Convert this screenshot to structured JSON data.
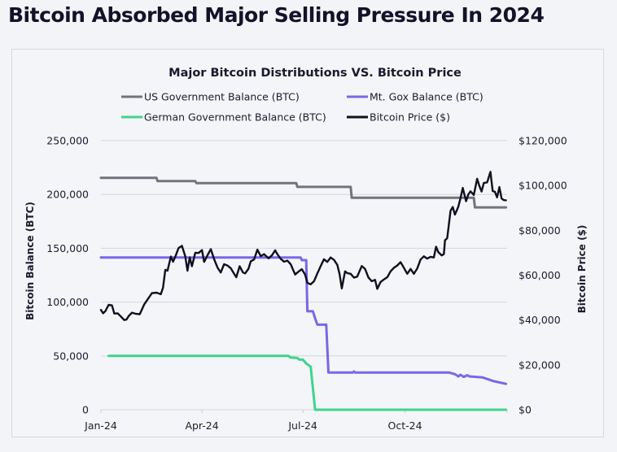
{
  "page": {
    "title": "Bitcoin Absorbed Major Selling Pressure In 2024"
  },
  "chart_data": {
    "type": "line",
    "title": "Major Bitcoin Distributions VS. Bitcoin Price",
    "legend_position": "top",
    "grid": true,
    "x_ticks": [
      "Jan-24",
      "Apr-24",
      "Jul-24",
      "Oct-24"
    ],
    "x_range": [
      "2024-01-01",
      "2025-01-01"
    ],
    "left_axis": {
      "label": "Bitcoin Balance (BTC)",
      "range": [
        0,
        250000
      ],
      "ticks": [
        0,
        50000,
        100000,
        150000,
        200000,
        250000
      ],
      "tick_labels": [
        "0",
        "50,000",
        "100,000",
        "150,000",
        "200,000",
        "250,000"
      ]
    },
    "right_axis": {
      "label": "Bitcoin Price ($)",
      "range": [
        0,
        120000
      ],
      "ticks": [
        0,
        20000,
        40000,
        60000,
        80000,
        100000,
        120000
      ],
      "tick_labels": [
        "$0",
        "$20,000",
        "$40,000",
        "$60,000",
        "$80,000",
        "$100,000",
        "$120,000"
      ]
    },
    "series": [
      {
        "name": "US Government Balance (BTC)",
        "axis": "left",
        "color": "#73737d",
        "step": true,
        "points": [
          [
            "2024-01-01",
            215500
          ],
          [
            "2024-02-20",
            215500
          ],
          [
            "2024-02-21",
            212500
          ],
          [
            "2024-03-26",
            212500
          ],
          [
            "2024-03-27",
            210500
          ],
          [
            "2024-06-25",
            210500
          ],
          [
            "2024-06-26",
            207000
          ],
          [
            "2024-08-13",
            207000
          ],
          [
            "2024-08-14",
            197000
          ],
          [
            "2024-12-02",
            197000
          ],
          [
            "2024-12-03",
            188000
          ],
          [
            "2024-12-31",
            188000
          ]
        ]
      },
      {
        "name": "Mt. Gox Balance (BTC)",
        "axis": "left",
        "color": "#7b66e8",
        "step": true,
        "points": [
          [
            "2024-01-01",
            141500
          ],
          [
            "2024-06-29",
            141500
          ],
          [
            "2024-06-30",
            139000
          ],
          [
            "2024-07-04",
            139000
          ],
          [
            "2024-07-05",
            91500
          ],
          [
            "2024-07-10",
            91500
          ],
          [
            "2024-07-12",
            85000
          ],
          [
            "2024-07-14",
            79000
          ],
          [
            "2024-07-22",
            79000
          ],
          [
            "2024-07-24",
            34500
          ],
          [
            "2024-08-15",
            34500
          ],
          [
            "2024-08-16",
            35500
          ],
          [
            "2024-08-17",
            34500
          ],
          [
            "2024-11-10",
            34500
          ],
          [
            "2024-11-15",
            33000
          ],
          [
            "2024-11-18",
            31000
          ],
          [
            "2024-11-20",
            32500
          ],
          [
            "2024-11-23",
            30500
          ],
          [
            "2024-11-26",
            32000
          ],
          [
            "2024-11-28",
            31000
          ],
          [
            "2024-12-10",
            30000
          ],
          [
            "2024-12-20",
            26500
          ],
          [
            "2024-12-31",
            24000
          ]
        ]
      },
      {
        "name": "German Government Balance (BTC)",
        "axis": "left",
        "color": "#3fd38f",
        "step": false,
        "points": [
          [
            "2024-01-08",
            50000
          ],
          [
            "2024-06-18",
            50000
          ],
          [
            "2024-06-20",
            48500
          ],
          [
            "2024-06-26",
            48000
          ],
          [
            "2024-06-28",
            46500
          ],
          [
            "2024-07-01",
            46500
          ],
          [
            "2024-07-04",
            43000
          ],
          [
            "2024-07-08",
            40000
          ],
          [
            "2024-07-10",
            20000
          ],
          [
            "2024-07-12",
            0
          ],
          [
            "2024-12-31",
            0
          ]
        ]
      },
      {
        "name": "Bitcoin Price ($)",
        "axis": "right",
        "color": "#0f0f20",
        "step": false,
        "points": [
          [
            "2024-01-01",
            44500
          ],
          [
            "2024-01-03",
            43000
          ],
          [
            "2024-01-05",
            44000
          ],
          [
            "2024-01-08",
            46800
          ],
          [
            "2024-01-11",
            46500
          ],
          [
            "2024-01-13",
            42900
          ],
          [
            "2024-01-16",
            43000
          ],
          [
            "2024-01-19",
            41600
          ],
          [
            "2024-01-22",
            40000
          ],
          [
            "2024-01-24",
            40200
          ],
          [
            "2024-01-26",
            41800
          ],
          [
            "2024-01-29",
            43300
          ],
          [
            "2024-02-01",
            42800
          ],
          [
            "2024-02-05",
            42600
          ],
          [
            "2024-02-09",
            47000
          ],
          [
            "2024-02-13",
            49900
          ],
          [
            "2024-02-16",
            52000
          ],
          [
            "2024-02-20",
            52200
          ],
          [
            "2024-02-24",
            51500
          ],
          [
            "2024-02-26",
            54500
          ],
          [
            "2024-02-28",
            62400
          ],
          [
            "2024-03-01",
            62000
          ],
          [
            "2024-03-04",
            68300
          ],
          [
            "2024-03-06",
            66000
          ],
          [
            "2024-03-08",
            68200
          ],
          [
            "2024-03-11",
            72100
          ],
          [
            "2024-03-14",
            73100
          ],
          [
            "2024-03-17",
            68400
          ],
          [
            "2024-03-19",
            62000
          ],
          [
            "2024-03-21",
            67900
          ],
          [
            "2024-03-23",
            64000
          ],
          [
            "2024-03-26",
            70000
          ],
          [
            "2024-03-29",
            69900
          ],
          [
            "2024-04-01",
            71200
          ],
          [
            "2024-04-03",
            65900
          ],
          [
            "2024-04-06",
            68900
          ],
          [
            "2024-04-09",
            71600
          ],
          [
            "2024-04-12",
            67100
          ],
          [
            "2024-04-15",
            63400
          ],
          [
            "2024-04-18",
            61200
          ],
          [
            "2024-04-21",
            64900
          ],
          [
            "2024-04-24",
            64300
          ],
          [
            "2024-04-27",
            63100
          ],
          [
            "2024-04-30",
            60600
          ],
          [
            "2024-05-02",
            59100
          ],
          [
            "2024-05-05",
            64000
          ],
          [
            "2024-05-08",
            61200
          ],
          [
            "2024-05-10",
            60800
          ],
          [
            "2024-05-13",
            62900
          ],
          [
            "2024-05-15",
            66200
          ],
          [
            "2024-05-18",
            67000
          ],
          [
            "2024-05-21",
            71400
          ],
          [
            "2024-05-24",
            68500
          ],
          [
            "2024-05-27",
            69400
          ],
          [
            "2024-05-31",
            67500
          ],
          [
            "2024-06-03",
            68800
          ],
          [
            "2024-06-06",
            71100
          ],
          [
            "2024-06-08",
            69300
          ],
          [
            "2024-06-11",
            67300
          ],
          [
            "2024-06-14",
            66000
          ],
          [
            "2024-06-17",
            66500
          ],
          [
            "2024-06-20",
            64900
          ],
          [
            "2024-06-24",
            60300
          ],
          [
            "2024-06-27",
            61600
          ],
          [
            "2024-06-30",
            62700
          ],
          [
            "2024-07-03",
            60200
          ],
          [
            "2024-07-05",
            56600
          ],
          [
            "2024-07-08",
            55900
          ],
          [
            "2024-07-11",
            57300
          ],
          [
            "2024-07-14",
            60800
          ],
          [
            "2024-07-17",
            64100
          ],
          [
            "2024-07-20",
            67100
          ],
          [
            "2024-07-23",
            65900
          ],
          [
            "2024-07-26",
            67900
          ],
          [
            "2024-07-29",
            66800
          ],
          [
            "2024-08-01",
            64600
          ],
          [
            "2024-08-03",
            60600
          ],
          [
            "2024-08-05",
            54100
          ],
          [
            "2024-08-08",
            61700
          ],
          [
            "2024-08-10",
            60900
          ],
          [
            "2024-08-13",
            60600
          ],
          [
            "2024-08-16",
            58900
          ],
          [
            "2024-08-19",
            59400
          ],
          [
            "2024-08-23",
            64100
          ],
          [
            "2024-08-26",
            62800
          ],
          [
            "2024-08-29",
            59000
          ],
          [
            "2024-09-01",
            57300
          ],
          [
            "2024-09-04",
            57900
          ],
          [
            "2024-09-06",
            53900
          ],
          [
            "2024-09-09",
            57000
          ],
          [
            "2024-09-12",
            58100
          ],
          [
            "2024-09-15",
            59100
          ],
          [
            "2024-09-18",
            61700
          ],
          [
            "2024-09-21",
            63300
          ],
          [
            "2024-09-24",
            64300
          ],
          [
            "2024-09-27",
            65800
          ],
          [
            "2024-09-30",
            63300
          ],
          [
            "2024-10-03",
            60600
          ],
          [
            "2024-10-06",
            62800
          ],
          [
            "2024-10-09",
            60600
          ],
          [
            "2024-10-12",
            63000
          ],
          [
            "2024-10-15",
            67000
          ],
          [
            "2024-10-18",
            68400
          ],
          [
            "2024-10-21",
            67400
          ],
          [
            "2024-10-24",
            68200
          ],
          [
            "2024-10-27",
            67900
          ],
          [
            "2024-10-29",
            72700
          ],
          [
            "2024-10-31",
            70300
          ],
          [
            "2024-11-03",
            68800
          ],
          [
            "2024-11-05",
            69400
          ],
          [
            "2024-11-06",
            75600
          ],
          [
            "2024-11-08",
            76500
          ],
          [
            "2024-11-11",
            88700
          ],
          [
            "2024-11-13",
            90400
          ],
          [
            "2024-11-15",
            87000
          ],
          [
            "2024-11-18",
            90500
          ],
          [
            "2024-11-20",
            94300
          ],
          [
            "2024-11-22",
            98900
          ],
          [
            "2024-11-25",
            93000
          ],
          [
            "2024-11-27",
            96000
          ],
          [
            "2024-11-29",
            97400
          ],
          [
            "2024-12-02",
            95800
          ],
          [
            "2024-12-05",
            103000
          ],
          [
            "2024-12-07",
            99800
          ],
          [
            "2024-12-09",
            97300
          ],
          [
            "2024-12-11",
            101100
          ],
          [
            "2024-12-14",
            101400
          ],
          [
            "2024-12-17",
            106100
          ],
          [
            "2024-12-19",
            97500
          ],
          [
            "2024-12-21",
            97200
          ],
          [
            "2024-12-23",
            94700
          ],
          [
            "2024-12-25",
            99300
          ],
          [
            "2024-12-27",
            94200
          ],
          [
            "2024-12-29",
            93500
          ],
          [
            "2024-12-31",
            93400
          ]
        ]
      }
    ]
  }
}
